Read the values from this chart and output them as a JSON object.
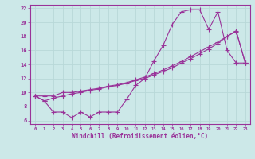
{
  "bg_color": "#cce8e8",
  "grid_color": "#aacccc",
  "line_color": "#993399",
  "xlabel": "Windchill (Refroidissement éolien,°C)",
  "xlim": [
    -0.5,
    23.5
  ],
  "ylim": [
    5.5,
    22.5
  ],
  "xticks": [
    0,
    1,
    2,
    3,
    4,
    5,
    6,
    7,
    8,
    9,
    10,
    11,
    12,
    13,
    14,
    15,
    16,
    17,
    18,
    19,
    20,
    21,
    22,
    23
  ],
  "yticks": [
    6,
    8,
    10,
    12,
    14,
    16,
    18,
    20,
    22
  ],
  "line1_x": [
    0,
    1,
    2,
    3,
    4,
    5,
    6,
    7,
    8,
    9,
    10,
    11,
    12,
    13,
    14,
    15,
    16,
    17,
    18,
    19,
    20,
    21,
    22,
    23
  ],
  "line1_y": [
    9.5,
    8.8,
    7.2,
    7.2,
    6.4,
    7.2,
    6.5,
    7.2,
    7.2,
    7.2,
    9.0,
    11.0,
    12.0,
    14.5,
    16.7,
    19.7,
    21.5,
    21.8,
    21.8,
    19.0,
    21.5,
    16.0,
    14.2,
    14.2
  ],
  "line2_x": [
    0,
    1,
    2,
    3,
    4,
    5,
    6,
    7,
    8,
    9,
    10,
    11,
    12,
    13,
    14,
    15,
    16,
    17,
    18,
    19,
    20,
    21,
    22,
    23
  ],
  "line2_y": [
    9.5,
    8.8,
    9.2,
    9.5,
    9.8,
    10.0,
    10.3,
    10.5,
    10.8,
    11.0,
    11.3,
    11.7,
    12.0,
    12.5,
    13.0,
    13.5,
    14.2,
    14.8,
    15.5,
    16.2,
    17.0,
    18.0,
    18.8,
    14.2
  ],
  "line3_x": [
    0,
    1,
    2,
    3,
    4,
    5,
    6,
    7,
    8,
    9,
    10,
    11,
    12,
    13,
    14,
    15,
    16,
    17,
    18,
    19,
    20,
    21,
    22,
    23
  ],
  "line3_y": [
    9.5,
    9.5,
    9.5,
    10.0,
    10.0,
    10.2,
    10.4,
    10.6,
    10.9,
    11.1,
    11.4,
    11.8,
    12.2,
    12.7,
    13.2,
    13.8,
    14.4,
    15.1,
    15.8,
    16.5,
    17.2,
    18.0,
    18.7,
    14.2
  ]
}
